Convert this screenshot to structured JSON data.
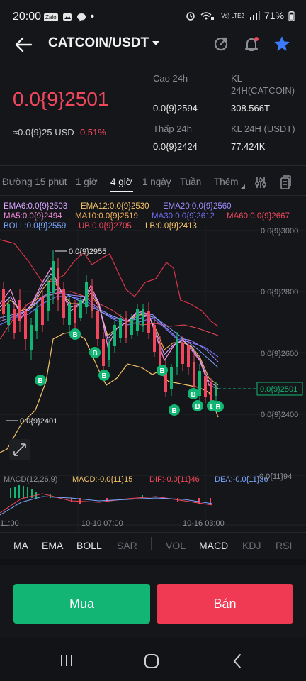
{
  "status_bar": {
    "time": "20:00",
    "left_icons": [
      "zalo-icon",
      "gallery-icon",
      "message-icon",
      "dot-icon"
    ],
    "zalo_tag": "Zalo",
    "volte_tag": "Vo) LTE2",
    "battery": "71%"
  },
  "header": {
    "pair": "CATCOIN/USDT",
    "icons": [
      "back-arrow-icon",
      "share-icon",
      "bell-icon",
      "star-icon"
    ],
    "accent": "#3a7bfd"
  },
  "ticker": {
    "price": "0.0{9}2501",
    "usd": "≈0.0{9}25 USD",
    "change": "-0.51%",
    "high_label": "Cao 24h",
    "high": "0.0{9}2594",
    "low_label": "Thấp 24h",
    "low": "0.0{9}2424",
    "vol_coin_label_1": "KL",
    "vol_coin_label_2": "24H(CATCOIN)",
    "vol_coin": "308.566T",
    "vol_usdt_label": "KL 24H (USDT)",
    "vol_usdt": "77.424K"
  },
  "tabs": {
    "items": [
      "Đường 15 phút",
      "1 giờ",
      "4 giờ",
      "1 ngày",
      "Tuần",
      "Thêm"
    ],
    "active": "4 giờ"
  },
  "indicators": {
    "row1": {
      "ema6": "EMA6:0.0{9}2503",
      "ema12": "EMA12:0.0{9}2530",
      "ema20": "EMA20:0.0{9}2560"
    },
    "row2": {
      "ma5": "MA5:0.0{9}2494",
      "ma10": "MA10:0.0{9}2519",
      "ma30": "MA30:0.0{9}2612",
      "ma60": "MA60:0.0{9}2667"
    },
    "row3": {
      "boll": "BOLL:0.0{9}2559",
      "ub": "UB:0.0{9}2705",
      "lb": "LB:0.0{9}2413"
    },
    "colors": {
      "ema6": "#d9a6ff",
      "ema12": "#f5c36b",
      "ema20": "#9e8cff",
      "ma5": "#f08ad6",
      "ma10": "#f5b25c",
      "ma30": "#6f6cf2",
      "ma60": "#f0475c",
      "boll": "#7ba6ff",
      "ub": "#f0475c",
      "lb": "#f5c36b"
    }
  },
  "chart": {
    "y_labels": [
      "0.0{9}3000",
      "0.0{9}2800",
      "0.0{9}2600",
      "0.0{9}2400"
    ],
    "max_label": "0.0{9}2955",
    "min_label": "0.0{9}2401",
    "current_label": "0.0{9}2501",
    "marker": "B",
    "macd": {
      "title": "MACD(12,26,9)",
      "macd": "MACD:-0.0{11}15",
      "dif": "DIF:-0.0{11}46",
      "dea": "DEA:-0.0{11}36",
      "axis": "0.0{11}94"
    },
    "x_labels": [
      "11:00",
      "10-10 07:00",
      "10-16 03:00"
    ]
  },
  "strip": {
    "items": [
      "MA",
      "EMA",
      "BOLL",
      "SAR",
      "VOL",
      "MACD",
      "KDJ",
      "RSI"
    ],
    "active": [
      "MA",
      "EMA",
      "BOLL",
      "MACD"
    ]
  },
  "actions": {
    "buy": "Mua",
    "sell": "Bán"
  }
}
